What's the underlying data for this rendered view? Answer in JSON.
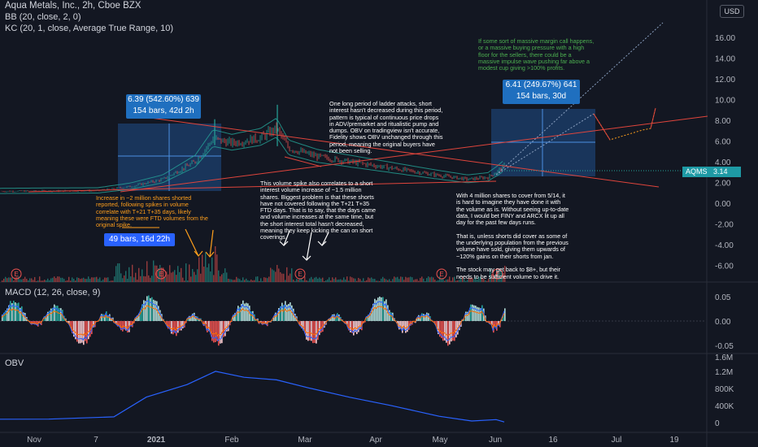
{
  "legend": {
    "symbol": "Aqua Metals, Inc., 2h, Cboe BZX",
    "bb": "BB (20, close, 2, 0)",
    "kc": "KC (20, 1, close, Average True Range, 10)",
    "macd": "MACD (12, 26, close, 9)",
    "obv": "OBV"
  },
  "currency_label": "USD",
  "last_price": {
    "symbol": "AQMS",
    "value": "3.14"
  },
  "price_axis": [
    "16.00",
    "14.00",
    "12.00",
    "10.00",
    "8.00",
    "6.00",
    "4.00",
    "2.00",
    "0.00",
    "-2.00",
    "-4.00",
    "-6.00"
  ],
  "macd_axis": [
    "0.05",
    "0.00",
    "-0.05"
  ],
  "obv_axis": [
    "1.6M",
    "1.2M",
    "800K",
    "400K",
    "0"
  ],
  "time_axis": [
    "Nov",
    "7",
    "2021",
    "Feb",
    "Mar",
    "Apr",
    "May",
    "Jun",
    "16",
    "Jul",
    "19"
  ],
  "measure_left": {
    "line1": "6.39 (542.60%) 639",
    "line2": "154 bars, 42d 2h"
  },
  "measure_right": {
    "line1": "6.41 (249.67%) 641",
    "line2": "154 bars, 30d"
  },
  "bars_label": "49 bars, 16d 22h",
  "earnings_marker": "E",
  "annotations": {
    "orange_left": "Increase in ~2 million shares shorted\nreported, following spikes in volume\ncorrelate with T+21 T+35 days, likely\nmeaning these were FTD volumes from the\noriginal spike.",
    "white_top": "One long period of ladder attacks, short\ninterest hasn't decreased during this period,\npattern is typical of continuous price drops\nin ADV/premarket and ritualistic pump and\ndumps. OBV on tradingview isn't accurate,\nFidelity shows OBV unchanged through this\nperiod, meaning the original buyers have\nnot been selling.",
    "white_mid": "This volume spike also correlates to a short\ninterest volume increase of ~1.5 million\nshares. Biggest problem is that these shorts\nhave not covered following the T+21 T+35\nFTD days. That is to say, that the days came\nand volume increases at the same time, but\nthe short interest total hasn't decreased,\nmeaning they keep kicking the can on short\ncoverings.",
    "white_right": "With 4 million shares to cover from 5/14, it\nis hard to imagine they have done it with\nthe volume as is. Without seeing up-to-date\ndata, I would bet FINY and ARCX lit up all\nday for the past few days runs.\n\nThat is, unless shorts did cover as some of\nthe underlying population from the previous\nvolume have sold, giving them upwards of\n~120% gains on their shorts from jan.\n\nThe stock may get back to $8+, but their\nneeds to be sufficient volume to drive it.",
    "green_top": "If some sort of massive margin call happens,\nor a massive buying pressure with a high\nfloor for the sellers, there could be a\nmassive impulse wave pushing far above a\nmodest cup giving >100% profits."
  },
  "colors": {
    "background": "#131722",
    "up": "#26a69a",
    "down": "#ef5350",
    "trend": "#e0453c",
    "measure": "#2962ff",
    "orange": "#ff9f1c",
    "green_note": "#4caf50"
  },
  "chart_data": [
    {
      "type": "candlestick",
      "title": "Aqua Metals, Inc., 2h, Cboe BZX",
      "ylim": [
        -6.5,
        17
      ],
      "x": [
        "Nov",
        "7",
        "2021",
        "Feb",
        "Mar",
        "Apr",
        "May",
        "Jun",
        "16",
        "Jul",
        "19"
      ],
      "series": [
        {
          "name": "AQMS",
          "x": [
            "Nov",
            "7",
            "2021",
            "Feb",
            "Mar",
            "Apr",
            "May",
            "Jun"
          ],
          "values": [
            1.1,
            1.1,
            2.0,
            6.5,
            5.5,
            4.0,
            2.6,
            3.14
          ]
        }
      ],
      "last_value": 3.14
    },
    {
      "type": "bar",
      "title": "MACD (12, 26, close, 9)",
      "ylim": [
        -0.07,
        0.07
      ],
      "ticks": [
        0.05,
        0.0,
        -0.05
      ]
    },
    {
      "type": "line",
      "title": "OBV",
      "ylim": [
        -100000,
        1700000
      ],
      "ticks": [
        1600000,
        1200000,
        800000,
        400000,
        0
      ],
      "x": [
        "Nov",
        "7",
        "2021",
        "Feb",
        "Mar",
        "Apr",
        "May",
        "Jun"
      ],
      "series": [
        {
          "name": "OBV",
          "values": [
            100000,
            250000,
            800000,
            1200000,
            950000,
            500000,
            100000,
            50000
          ]
        }
      ]
    }
  ]
}
